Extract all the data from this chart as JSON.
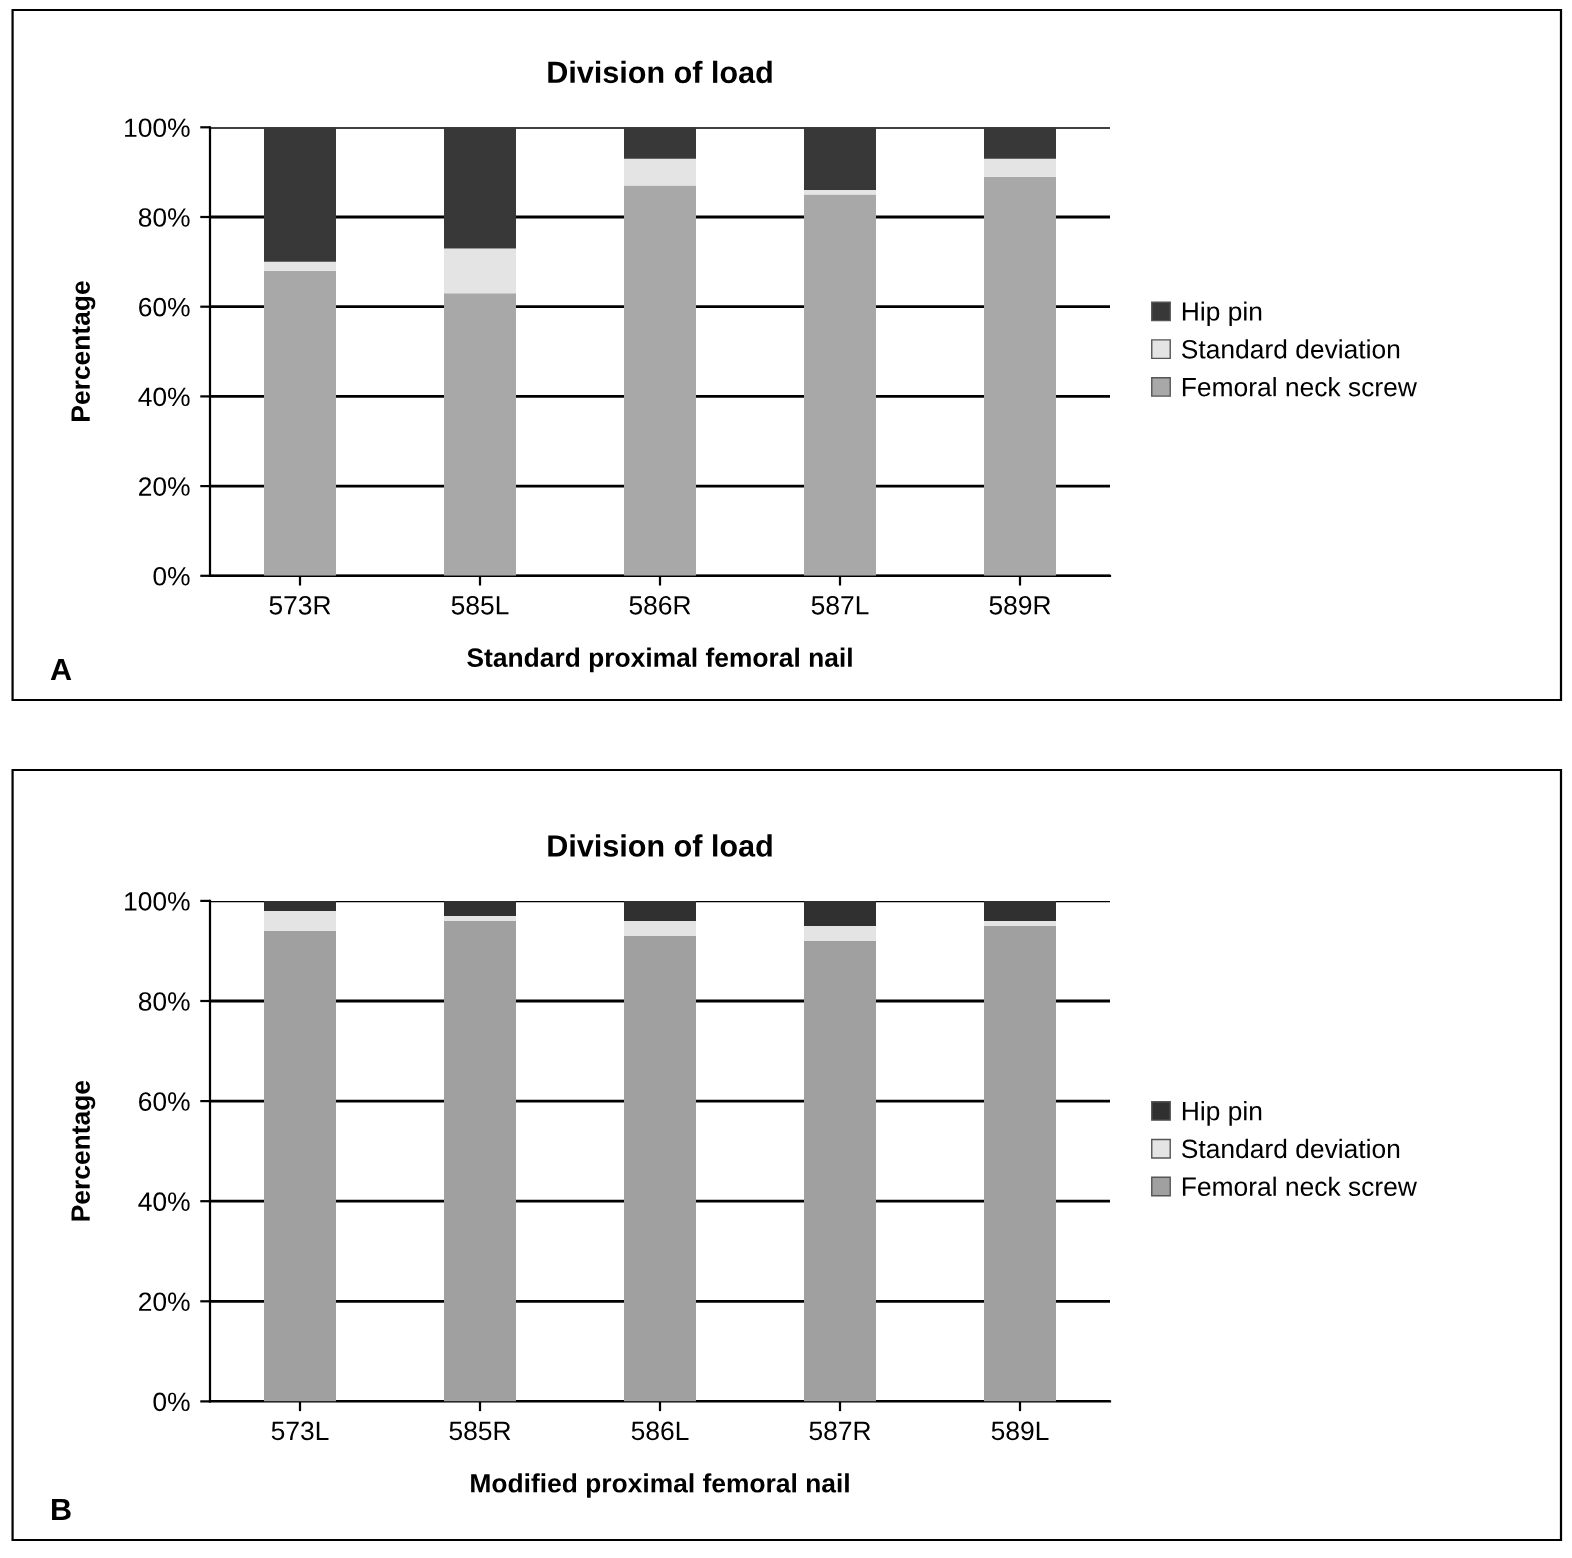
{
  "chart_data": [
    {
      "type": "bar",
      "title": "Division of load",
      "xlabel": "Standard proximal femoral nail",
      "ylabel": "Percentage",
      "categories": [
        "573R",
        "585L",
        "586R",
        "587L",
        "589R"
      ],
      "stacked": true,
      "series": [
        {
          "name": "Femoral neck screw",
          "color": "#a8a8a8",
          "values": [
            68,
            63,
            87,
            85,
            89
          ]
        },
        {
          "name": "Standard deviation",
          "color": "#e4e4e4",
          "values": [
            2,
            10,
            6,
            1,
            4
          ]
        },
        {
          "name": "Hip pin",
          "color": "#383838",
          "values": [
            30,
            27,
            7,
            14,
            7
          ]
        }
      ],
      "ylim": [
        0,
        100
      ],
      "yticks": [
        {
          "value": 0,
          "label": "0%"
        },
        {
          "value": 20,
          "label": "20%"
        },
        {
          "value": 40,
          "label": "40%"
        },
        {
          "value": 60,
          "label": "60%"
        },
        {
          "value": 80,
          "label": "80%"
        },
        {
          "value": 100,
          "label": "100%"
        }
      ],
      "grid": "y",
      "legend": "right",
      "annotations": [
        "A"
      ]
    },
    {
      "type": "bar",
      "title": "Division of load",
      "xlabel": "Modified proximal femoral nail",
      "ylabel": "Percentage",
      "categories": [
        "573L",
        "585R",
        "586L",
        "587R",
        "589L"
      ],
      "stacked": true,
      "series": [
        {
          "name": "Femoral neck screw",
          "color": "#a0a0a0",
          "values": [
            94,
            96,
            93,
            92,
            95
          ]
        },
        {
          "name": "Standard deviation",
          "color": "#e4e4e4",
          "values": [
            4,
            1,
            3,
            3,
            1
          ]
        },
        {
          "name": "Hip pin",
          "color": "#303030",
          "values": [
            2,
            3,
            4,
            5,
            4
          ]
        }
      ],
      "ylim": [
        0,
        100
      ],
      "yticks": [
        {
          "value": 0,
          "label": "0%"
        },
        {
          "value": 20,
          "label": "20%"
        },
        {
          "value": 40,
          "label": "40%"
        },
        {
          "value": 60,
          "label": "60%"
        },
        {
          "value": 80,
          "label": "80%"
        },
        {
          "value": 100,
          "label": "100%"
        }
      ],
      "grid": "y",
      "legend": "right",
      "annotations": [
        "B"
      ]
    }
  ]
}
